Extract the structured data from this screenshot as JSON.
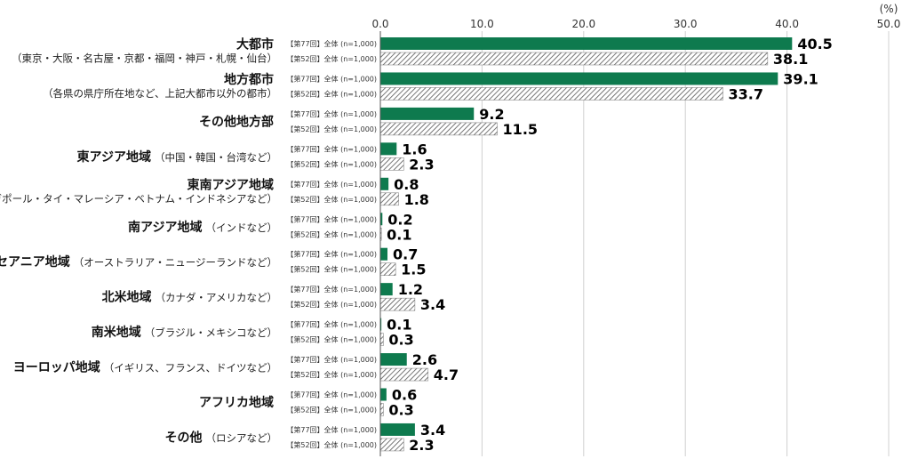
{
  "chart_data": {
    "type": "bar",
    "orientation": "horizontal",
    "unit_label": "(%)",
    "xlim": [
      0,
      50
    ],
    "x_ticks": [
      "0.0",
      "10.0",
      "20.0",
      "30.0",
      "40.0",
      "50.0"
    ],
    "grid": true,
    "categories": [
      {
        "main": "大都市",
        "sub": "（東京・大阪・名古屋・京都・福岡・神戸・札幌・仙台）",
        "layout": "two-line"
      },
      {
        "main": "地方都市",
        "sub": "（各県の県庁所在地など、上記大都市以外の都市）",
        "layout": "two-line"
      },
      {
        "main": "その他地方部",
        "sub": "",
        "layout": "single"
      },
      {
        "main": "東アジア地域",
        "sub": "（中国・韓国・台湾など）",
        "layout": "inline"
      },
      {
        "main": "東南アジア地域",
        "sub": "（シンガポール・タイ・マレーシア・ベトナム・インドネシアなど）",
        "layout": "two-line"
      },
      {
        "main": "南アジア地域",
        "sub": "（インドなど）",
        "layout": "inline"
      },
      {
        "main": "オセアニア地域",
        "sub": "（オーストラリア・ニュージーランドなど）",
        "layout": "inline"
      },
      {
        "main": "北米地域",
        "sub": "（カナダ・アメリカなど）",
        "layout": "inline"
      },
      {
        "main": "南米地域",
        "sub": "（ブラジル・メキシコなど）",
        "layout": "inline"
      },
      {
        "main": "ヨーロッパ地域",
        "sub": "（イギリス、フランス、ドイツなど）",
        "layout": "inline"
      },
      {
        "main": "アフリカ地域",
        "sub": "",
        "layout": "single"
      },
      {
        "main": "その他",
        "sub": "（ロシアなど）",
        "layout": "inline"
      }
    ],
    "series": [
      {
        "name": "【第77回】全体 (n=1,000)",
        "color": "#0e7a4e",
        "pattern": "solid",
        "values": [
          40.5,
          39.1,
          9.2,
          1.6,
          0.8,
          0.2,
          0.7,
          1.2,
          0.1,
          2.6,
          0.6,
          3.4
        ],
        "labels": [
          "40.5",
          "39.1",
          "9.2",
          "1.6",
          "0.8",
          "0.2",
          "0.7",
          "1.2",
          "0.1",
          "2.6",
          "0.6",
          "3.4"
        ]
      },
      {
        "name": "【第52回】全体 (n=1,000)",
        "color": "#555555",
        "pattern": "hatched",
        "values": [
          38.1,
          33.7,
          11.5,
          2.3,
          1.8,
          0.1,
          1.5,
          3.4,
          0.3,
          4.7,
          0.3,
          2.3
        ],
        "labels": [
          "38.1",
          "33.7",
          "11.5",
          "2.3",
          "1.8",
          "0.1",
          "1.5",
          "3.4",
          "0.3",
          "4.7",
          "0.3",
          "2.3"
        ]
      }
    ]
  }
}
